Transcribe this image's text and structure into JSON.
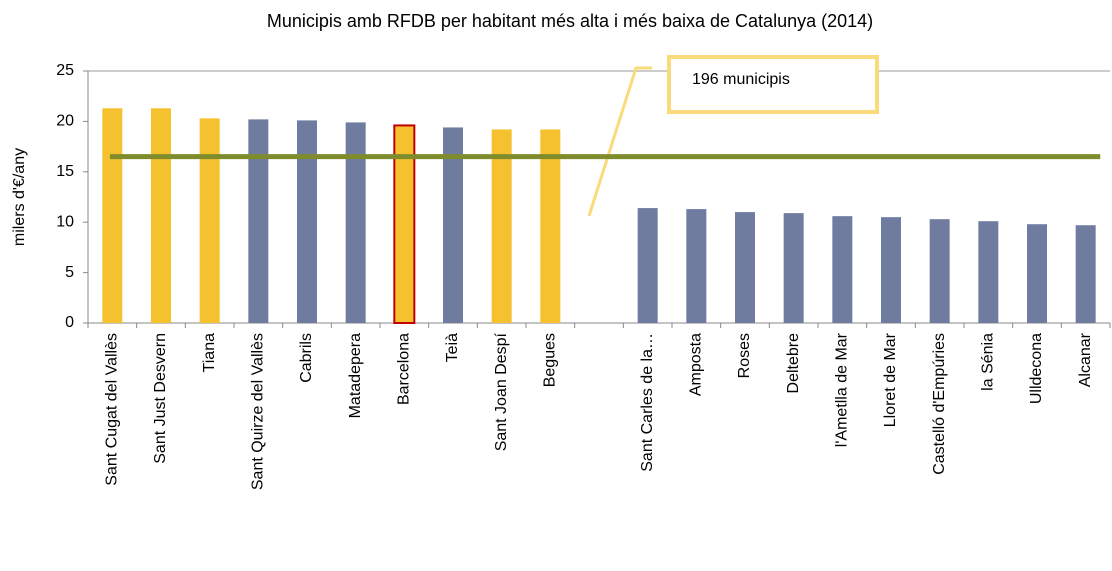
{
  "chart_data": {
    "type": "bar",
    "title": "Municipis amb RFDB per habitant més alta i més baixa de Catalunya (2014)",
    "ylabel": "milers d'€/any",
    "categories": [
      "Sant Cugat del Vallès",
      "Sant Just Desvern",
      "Tiana",
      "Sant Quirze del Vallès",
      "Cabrils",
      "Matadepera",
      "Barcelona",
      "Teià",
      "Sant Joan Despí",
      "Begues",
      null,
      "Sant Carles de la…",
      "Amposta",
      "Roses",
      "Deltebre",
      "l'Ametlla de Mar",
      "Lloret de Mar",
      "Castelló d'Empúries",
      "la Sénia",
      "Ulldecona",
      "Alcanar"
    ],
    "values": [
      21.3,
      21.3,
      20.3,
      20.2,
      20.1,
      19.9,
      19.6,
      19.4,
      19.2,
      19.2,
      null,
      11.4,
      11.3,
      11.0,
      10.9,
      10.6,
      10.5,
      10.3,
      10.1,
      9.8,
      9.7
    ],
    "colors": [
      "#f6c12e",
      "#f6c12e",
      "#f6c12e",
      "#6f7ca0",
      "#6f7ca0",
      "#6f7ca0",
      "#f6c12e",
      "#6f7ca0",
      "#f6c12e",
      "#f6c12e",
      null,
      "#6f7ca0",
      "#6f7ca0",
      "#6f7ca0",
      "#6f7ca0",
      "#6f7ca0",
      "#6f7ca0",
      "#6f7ca0",
      "#6f7ca0",
      "#6f7ca0",
      "#6f7ca0"
    ],
    "edgecolors": [
      null,
      null,
      null,
      null,
      null,
      null,
      "#c00000",
      null,
      null,
      null,
      null,
      null,
      null,
      null,
      null,
      null,
      null,
      null,
      null,
      null,
      null
    ],
    "reference_line": {
      "value": 16.5,
      "color": "#7f8c2b"
    },
    "annotation": "196 municipis",
    "ylim": [
      0,
      25
    ],
    "yticks": [
      0,
      5,
      10,
      15,
      20,
      25
    ]
  }
}
